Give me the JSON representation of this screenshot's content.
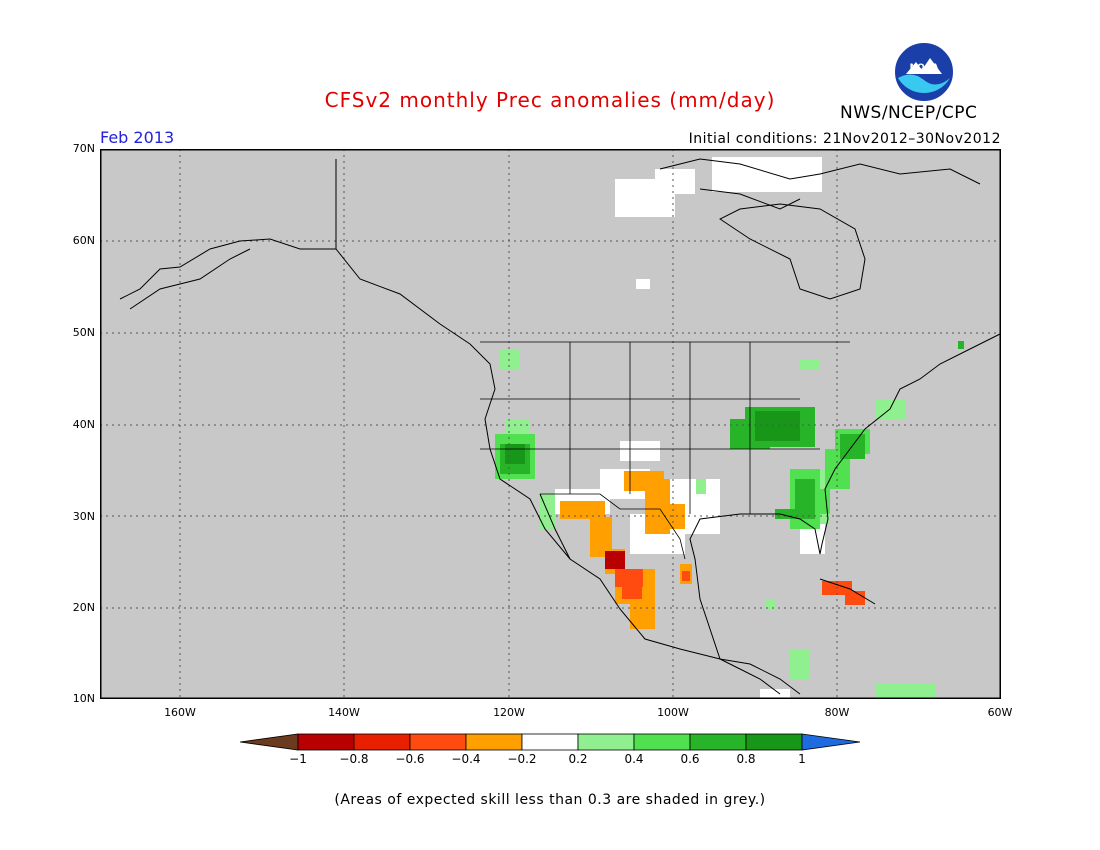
{
  "title": "CFSv2 monthly Prec anomalies (mm/day)",
  "organization": "NWS/NCEP/CPC",
  "logo_text": "NOAA",
  "forecast_month": "Feb 2013",
  "initial_conditions": "Initial conditions: 21Nov2012–30Nov2012",
  "map": {
    "lat_labels": [
      "70N",
      "60N",
      "50N",
      "40N",
      "30N",
      "20N",
      "10N"
    ],
    "lon_labels": [
      "160W",
      "140W",
      "120W",
      "100W",
      "80W",
      "60W"
    ],
    "colors": {
      "background_low_skill": "#c8c8c8",
      "coastline": "#000000",
      "gridline": "#555555"
    }
  },
  "colorbar": {
    "labels": [
      "−1",
      "−0.8",
      "−0.6",
      "−0.4",
      "−0.2",
      "0.2",
      "0.4",
      "0.6",
      "0.8",
      "1"
    ],
    "colors": [
      "#6b3a1f",
      "#b80000",
      "#e82000",
      "#ff4a10",
      "#ffa000",
      "#ffffff",
      "#90f090",
      "#50e050",
      "#28b428",
      "#189618",
      "#1e6be0"
    ]
  },
  "note": "(Areas of expected skill less than 0.3 are shaded in grey.)"
}
